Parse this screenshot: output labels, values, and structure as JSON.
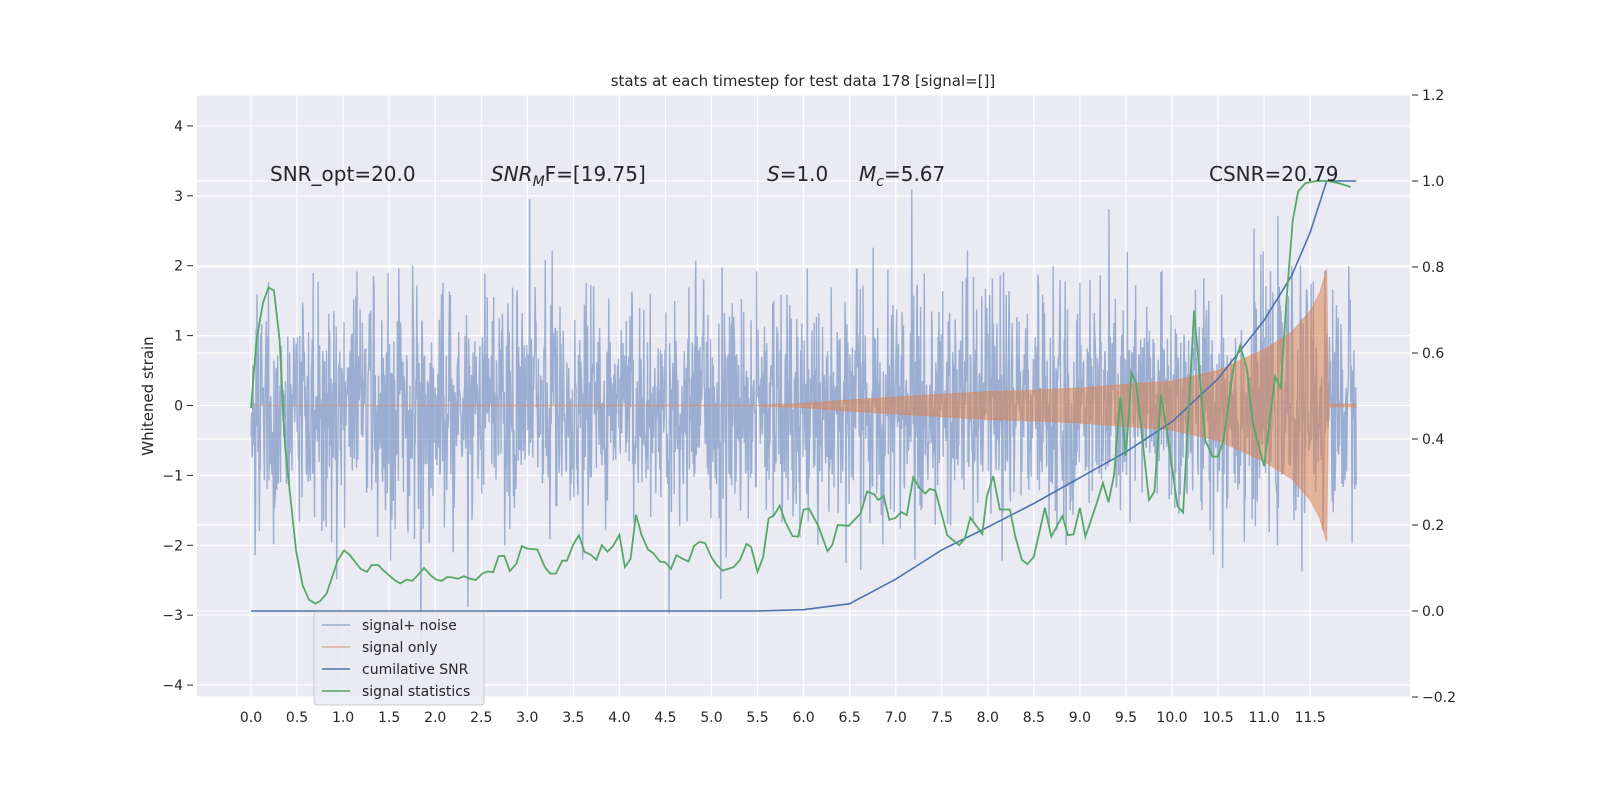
{
  "chart_data": {
    "type": "line",
    "title": "stats at each timestep for test data 178 [signal=[]]",
    "xlabel": "",
    "ylabel": "Whitened strain",
    "ylabel_right": "",
    "xlim": [
      -0.6,
      12.65
    ],
    "ylim": [
      -4.15,
      4.45
    ],
    "ylim_right": [
      -0.2,
      1.2
    ],
    "x_ticks": [
      "0.0",
      "0.5",
      "1.0",
      "1.5",
      "2.0",
      "2.5",
      "3.0",
      "3.5",
      "4.0",
      "4.5",
      "5.0",
      "5.5",
      "6.0",
      "6.5",
      "7.0",
      "7.5",
      "8.0",
      "8.5",
      "9.0",
      "9.5",
      "10.0",
      "10.5",
      "11.0",
      "11.5"
    ],
    "y_ticks": [
      "−4",
      "−3",
      "−2",
      "−1",
      "0",
      "1",
      "2",
      "3",
      "4"
    ],
    "y_ticks_right": [
      "−0.2",
      "0.0",
      "0.2",
      "0.4",
      "0.6",
      "0.8",
      "1.0",
      "1.2"
    ],
    "grid": true,
    "legend_placement": "lower-left",
    "colors": {
      "background": "#eaeaf2",
      "noise": "#4c72b0",
      "signal": "#dd8452",
      "snr": "#4c72b0",
      "stats": "#55a868"
    },
    "annotations": {
      "snr_opt": "SNR_opt=20.0",
      "snr_mf_base": "SNR",
      "snr_mf_sub": "M",
      "snr_mf_rest": "F=[19.75]",
      "s": "S",
      "s_rest": "=1.0",
      "mc": "M",
      "mc_sub": "c",
      "mc_rest": "=5.67",
      "csnr": "CSNR=20.79"
    },
    "series": [
      {
        "name": "signal+ noise",
        "axis": "left",
        "x_range": [
          0.0,
          12.0
        ],
        "amplitude_range": [
          -3.8,
          4.1
        ]
      },
      {
        "name": "signal only",
        "axis": "left",
        "envelope": {
          "x": [
            0,
            5.5,
            6.0,
            6.5,
            7.0,
            7.5,
            8.0,
            8.5,
            9.0,
            9.5,
            10.0,
            10.5,
            11.0,
            11.3,
            11.5,
            11.6,
            11.68,
            11.7,
            12.0
          ],
          "y": [
            0,
            0.005,
            0.03,
            0.08,
            0.12,
            0.16,
            0.2,
            0.22,
            0.25,
            0.3,
            0.35,
            0.5,
            0.8,
            1.05,
            1.35,
            1.6,
            1.95,
            0.02,
            0.02
          ]
        }
      },
      {
        "name": "cumilative SNR",
        "axis": "right",
        "x": [
          0,
          5.5,
          6.0,
          6.5,
          7.0,
          7.5,
          8.0,
          8.5,
          9.0,
          9.5,
          10.0,
          10.5,
          11.0,
          11.3,
          11.5,
          11.68,
          12.0
        ],
        "y": [
          0,
          0,
          0.003,
          0.017,
          0.074,
          0.142,
          0.195,
          0.25,
          0.31,
          0.37,
          0.44,
          0.54,
          0.676,
          0.78,
          0.88,
          1.0,
          1.0
        ]
      },
      {
        "name": "signal statistics",
        "axis": "right",
        "x": [
          0,
          0.06,
          0.13,
          0.19,
          0.25,
          0.31,
          0.37,
          0.43,
          0.49,
          0.56,
          0.63,
          0.7,
          0.75,
          0.82,
          0.94,
          1.01,
          1.07,
          1.19,
          1.26,
          1.31,
          1.38,
          1.44,
          1.57,
          1.62,
          1.69,
          1.75,
          1.81,
          1.88,
          1.95,
          2.01,
          2.07,
          2.13,
          2.19,
          2.25,
          2.31,
          2.38,
          2.44,
          2.51,
          2.57,
          2.63,
          2.69,
          2.75,
          2.81,
          2.88,
          2.94,
          3.0,
          3.11,
          3.19,
          3.25,
          3.31,
          3.38,
          3.43,
          3.5,
          3.56,
          3.62,
          3.69,
          3.75,
          3.81,
          3.87,
          3.93,
          4.0,
          4.06,
          4.12,
          4.18,
          4.24,
          4.31,
          4.37,
          4.44,
          4.5,
          4.56,
          4.62,
          4.69,
          4.75,
          4.81,
          4.87,
          4.93,
          5.0,
          5.06,
          5.12,
          5.18,
          5.24,
          5.31,
          5.38,
          5.43,
          5.5,
          5.56,
          5.62,
          5.68,
          5.74,
          5.8,
          5.88,
          5.94,
          6.0,
          6.06,
          6.16,
          6.26,
          6.31,
          6.37,
          6.49,
          6.62,
          6.69,
          6.77,
          6.81,
          6.87,
          6.93,
          7.0,
          7.06,
          7.12,
          7.19,
          7.26,
          7.32,
          7.37,
          7.43,
          7.56,
          7.69,
          7.75,
          7.81,
          7.94,
          7.99,
          8.06,
          8.13,
          8.24,
          8.3,
          8.37,
          8.43,
          8.5,
          8.62,
          8.69,
          8.81,
          8.87,
          8.93,
          9.0,
          9.06,
          9.18,
          9.25,
          9.31,
          9.37,
          9.44,
          9.5,
          9.56,
          9.61,
          9.75,
          9.81,
          9.88,
          9.94,
          10.06,
          10.12,
          10.24,
          10.36,
          10.44,
          10.5,
          10.56,
          10.67,
          10.74,
          10.81,
          10.88,
          11.0,
          11.12,
          11.18,
          11.24,
          11.31,
          11.37,
          11.45,
          11.57,
          11.69,
          11.81,
          11.94
        ],
        "y": [
          0.472,
          0.63,
          0.717,
          0.752,
          0.745,
          0.63,
          0.381,
          0.26,
          0.14,
          0.06,
          0.026,
          0.017,
          0.023,
          0.04,
          0.117,
          0.141,
          0.131,
          0.098,
          0.091,
          0.107,
          0.107,
          0.094,
          0.07,
          0.064,
          0.073,
          0.07,
          0.083,
          0.1,
          0.083,
          0.073,
          0.07,
          0.079,
          0.078,
          0.075,
          0.081,
          0.075,
          0.072,
          0.087,
          0.092,
          0.09,
          0.128,
          0.128,
          0.093,
          0.109,
          0.151,
          0.145,
          0.143,
          0.102,
          0.087,
          0.087,
          0.117,
          0.117,
          0.155,
          0.176,
          0.138,
          0.131,
          0.119,
          0.153,
          0.138,
          0.151,
          0.177,
          0.102,
          0.121,
          0.224,
          0.177,
          0.143,
          0.134,
          0.115,
          0.113,
          0.098,
          0.13,
          0.121,
          0.115,
          0.151,
          0.161,
          0.158,
          0.125,
          0.106,
          0.094,
          0.098,
          0.102,
          0.119,
          0.156,
          0.149,
          0.091,
          0.125,
          0.215,
          0.223,
          0.245,
          0.208,
          0.174,
          0.173,
          0.236,
          0.238,
          0.198,
          0.139,
          0.153,
          0.2,
          0.198,
          0.227,
          0.278,
          0.271,
          0.258,
          0.268,
          0.212,
          0.217,
          0.23,
          0.223,
          0.311,
          0.286,
          0.273,
          0.284,
          0.28,
          0.176,
          0.153,
          0.168,
          0.217,
          0.179,
          0.267,
          0.314,
          0.236,
          0.236,
          0.172,
          0.119,
          0.109,
          0.126,
          0.24,
          0.173,
          0.221,
          0.176,
          0.178,
          0.24,
          0.173,
          0.249,
          0.298,
          0.253,
          0.316,
          0.498,
          0.361,
          0.553,
          0.532,
          0.258,
          0.278,
          0.502,
          0.426,
          0.244,
          0.229,
          0.699,
          0.398,
          0.359,
          0.359,
          0.399,
          0.57,
          0.617,
          0.566,
          0.434,
          0.337,
          0.546,
          0.517,
          0.714,
          0.908,
          0.976,
          0.995,
          1.0,
          1.0,
          0.995,
          0.986
        ]
      }
    ]
  }
}
